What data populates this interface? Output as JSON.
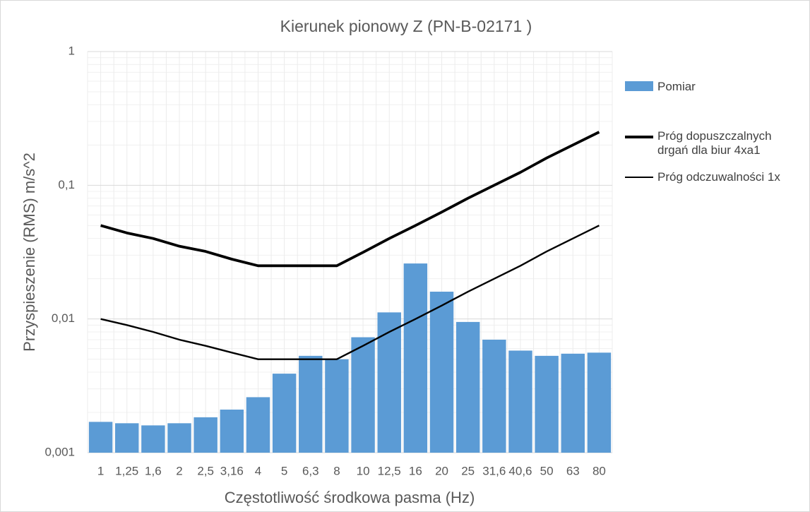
{
  "chart_data": {
    "type": "bar",
    "title": "Kierunek pionowy Z (PN-B-02171 )",
    "x_label": "Częstotliwość środkowa pasma (Hz)",
    "y_label": "Przyspieszenie (RMS) m/s^2",
    "categories": [
      "1",
      "1,25",
      "1,6",
      "2",
      "2,5",
      "3,16",
      "4",
      "5",
      "6,3",
      "8",
      "10",
      "12,5",
      "16",
      "20",
      "25",
      "31,6",
      "40,6",
      "50",
      "63",
      "80"
    ],
    "series": [
      {
        "name": "Pomiar",
        "type": "bar",
        "color": "#5b9bd5",
        "values": [
          0.0017,
          0.00166,
          0.0016,
          0.00166,
          0.00184,
          0.0021,
          0.0026,
          0.0039,
          0.0053,
          0.005,
          0.0073,
          0.0112,
          0.026,
          0.016,
          0.0095,
          0.007,
          0.0058,
          0.0053,
          0.0055,
          0.0056
        ]
      },
      {
        "name": "Próg dopuszczalnych drgań dla biur 4xa1",
        "type": "line",
        "color": "#000000",
        "values": [
          0.05,
          0.044,
          0.04,
          0.035,
          0.032,
          0.028,
          0.025,
          0.025,
          0.025,
          0.025,
          0.0315,
          0.04,
          0.05,
          0.063,
          0.08,
          0.1,
          0.125,
          0.16,
          0.2,
          0.25
        ]
      },
      {
        "name": "Próg odczuwalności 1x",
        "type": "line",
        "color": "#000000",
        "values": [
          0.01,
          0.009,
          0.008,
          0.007,
          0.0063,
          0.0056,
          0.005,
          0.005,
          0.005,
          0.005,
          0.0063,
          0.008,
          0.01,
          0.0126,
          0.016,
          0.02,
          0.025,
          0.032,
          0.04,
          0.05
        ]
      }
    ],
    "ylim": [
      0.001,
      1
    ],
    "yticks": [
      {
        "value": 0.001,
        "label": "0,001"
      },
      {
        "value": 0.01,
        "label": "0,01"
      },
      {
        "value": 0.1,
        "label": "0,1"
      },
      1
    ],
    "log_y": true,
    "grid": true,
    "legend": "right"
  }
}
